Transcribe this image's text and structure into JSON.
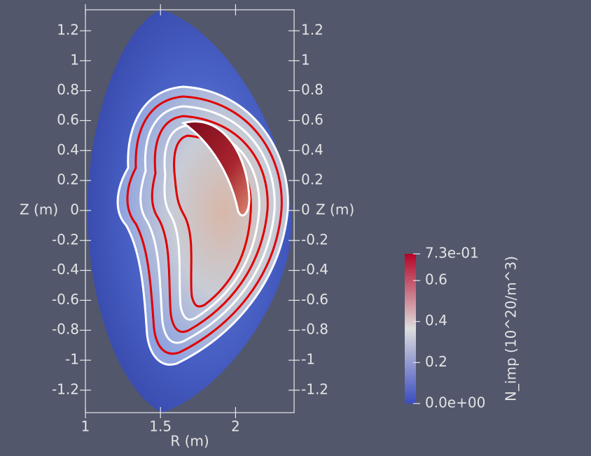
{
  "chart_data": {
    "type": "contour",
    "xlabel": "R (m)",
    "ylabel": "Z (m)",
    "xlim": [
      1,
      2.39
    ],
    "ylim": [
      -1.35,
      1.34
    ],
    "xticks": [
      1,
      1.5,
      2
    ],
    "yticks": [
      1.2,
      1,
      0.8,
      0.6,
      0.4,
      0.2,
      0,
      -0.2,
      -0.4,
      -0.6,
      -0.8,
      -1,
      -1.2
    ],
    "colorbar": {
      "title": "N_imp (10^20/m^3)",
      "range": [
        0,
        0.73
      ],
      "ticks": [
        {
          "value": 0.73,
          "label": "7.3e-01"
        },
        0.6,
        0.4,
        0.2,
        {
          "value": 0,
          "label": "0.0e+00"
        }
      ],
      "colors": [
        "#3b4cc0",
        "#dddddd",
        "#b40426"
      ]
    }
  }
}
